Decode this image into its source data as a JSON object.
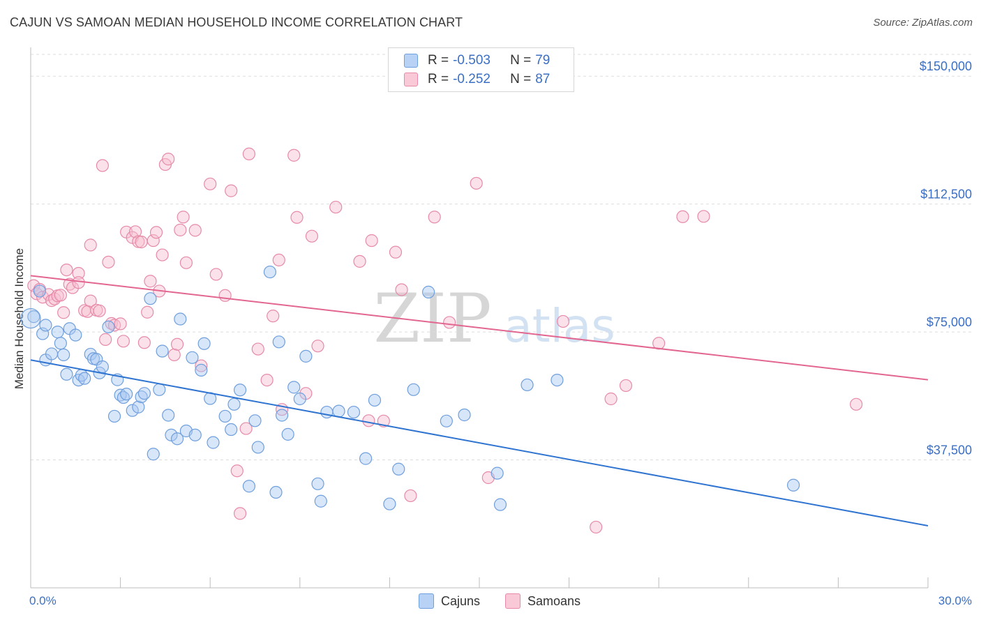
{
  "header": {
    "title": "CAJUN VS SAMOAN MEDIAN HOUSEHOLD INCOME CORRELATION CHART",
    "source": "Source: ZipAtlas.com"
  },
  "legend": {
    "cajuns": {
      "r_label": "R =",
      "r_value": "-0.503",
      "n_label": "N =",
      "n_value": "79"
    },
    "samoans": {
      "r_label": "R =",
      "r_value": "-0.252",
      "n_label": "N =",
      "n_value": "87"
    }
  },
  "bottom_legend": {
    "cajuns": "Cajuns",
    "samoans": "Samoans"
  },
  "axes": {
    "x_min_label": "0.0%",
    "x_max_label": "30.0%"
  },
  "colors": {
    "cajun_fill": "#a9c8f2",
    "cajun_stroke": "#6f9fdc",
    "cajun_line": "#2f74d0",
    "samoan_fill": "#f7bfd0",
    "samoan_stroke": "#e68aa8",
    "samoan_line": "#e2668f",
    "tick_label": "#3a6fc4",
    "grid": "#dddddd"
  },
  "watermark": {
    "zip": "ZIP",
    "atlas": "atlas"
  },
  "chart_data": {
    "type": "scatter",
    "title": "CAJUN VS SAMOAN MEDIAN HOUSEHOLD INCOME CORRELATION CHART",
    "xlabel": "",
    "ylabel": "Median Household Income",
    "xlim": [
      0,
      30
    ],
    "ylim": [
      0,
      157000
    ],
    "x_unit": "%",
    "y_ticks": [
      37500,
      75000,
      112500,
      150000
    ],
    "y_tick_labels": [
      "$37,500",
      "$75,000",
      "$112,500",
      "$150,000"
    ],
    "grid": "horizontal dashed",
    "legend_placement": "top-center",
    "series": [
      {
        "name": "Cajuns",
        "r": -0.503,
        "n": 79,
        "trend": {
          "x": [
            0,
            30
          ],
          "y": [
            66800,
            18200
          ]
        },
        "points": [
          [
            0.1,
            79500
          ],
          [
            0.3,
            87000
          ],
          [
            0.4,
            74500
          ],
          [
            0.5,
            66800
          ],
          [
            0.5,
            77000
          ],
          [
            0.7,
            68600
          ],
          [
            0.9,
            75000
          ],
          [
            1.0,
            71700
          ],
          [
            1.1,
            68300
          ],
          [
            1.2,
            62600
          ],
          [
            1.3,
            76000
          ],
          [
            1.5,
            74100
          ],
          [
            1.6,
            60900
          ],
          [
            1.7,
            62300
          ],
          [
            1.8,
            61400
          ],
          [
            2.0,
            68500
          ],
          [
            2.1,
            67200
          ],
          [
            2.2,
            67000
          ],
          [
            2.3,
            63000
          ],
          [
            2.4,
            64800
          ],
          [
            2.6,
            76500
          ],
          [
            2.8,
            50300
          ],
          [
            2.9,
            61000
          ],
          [
            3.0,
            56500
          ],
          [
            3.1,
            55800
          ],
          [
            3.2,
            56800
          ],
          [
            3.4,
            52000
          ],
          [
            3.6,
            53000
          ],
          [
            3.7,
            56000
          ],
          [
            3.8,
            57000
          ],
          [
            4.0,
            84800
          ],
          [
            4.1,
            39200
          ],
          [
            4.3,
            58100
          ],
          [
            4.4,
            69400
          ],
          [
            4.6,
            50600
          ],
          [
            4.7,
            44800
          ],
          [
            4.9,
            43700
          ],
          [
            5.0,
            78800
          ],
          [
            5.2,
            46000
          ],
          [
            5.4,
            67500
          ],
          [
            5.5,
            44800
          ],
          [
            5.7,
            63800
          ],
          [
            5.8,
            71600
          ],
          [
            6.0,
            55500
          ],
          [
            6.1,
            42600
          ],
          [
            6.5,
            50300
          ],
          [
            6.7,
            46400
          ],
          [
            6.8,
            53800
          ],
          [
            7.0,
            58000
          ],
          [
            7.3,
            29800
          ],
          [
            7.5,
            49000
          ],
          [
            7.6,
            41200
          ],
          [
            8.0,
            92600
          ],
          [
            8.2,
            28000
          ],
          [
            8.3,
            72100
          ],
          [
            8.4,
            50600
          ],
          [
            8.6,
            45000
          ],
          [
            8.8,
            58800
          ],
          [
            9.0,
            55400
          ],
          [
            9.2,
            67900
          ],
          [
            9.6,
            30500
          ],
          [
            9.7,
            25400
          ],
          [
            9.9,
            51500
          ],
          [
            10.3,
            51800
          ],
          [
            10.8,
            51500
          ],
          [
            11.2,
            37900
          ],
          [
            11.5,
            55000
          ],
          [
            12.0,
            24600
          ],
          [
            12.3,
            34800
          ],
          [
            12.8,
            58100
          ],
          [
            13.3,
            86700
          ],
          [
            13.9,
            48900
          ],
          [
            14.5,
            50700
          ],
          [
            15.6,
            33600
          ],
          [
            15.7,
            24400
          ],
          [
            16.6,
            59500
          ],
          [
            17.6,
            60900
          ],
          [
            25.5,
            30100
          ],
          [
            0.0,
            79000
          ]
        ]
      },
      {
        "name": "Samoans",
        "r": -0.252,
        "n": 87,
        "trend": {
          "x": [
            0,
            30
          ],
          "y": [
            91500,
            61000
          ]
        },
        "points": [
          [
            0.1,
            88600
          ],
          [
            0.2,
            86200
          ],
          [
            0.3,
            87500
          ],
          [
            0.4,
            85200
          ],
          [
            0.6,
            86000
          ],
          [
            0.7,
            84200
          ],
          [
            0.8,
            84700
          ],
          [
            0.9,
            85600
          ],
          [
            1.0,
            85800
          ],
          [
            1.1,
            80700
          ],
          [
            1.2,
            93200
          ],
          [
            1.3,
            89000
          ],
          [
            1.4,
            88000
          ],
          [
            1.6,
            92200
          ],
          [
            1.6,
            89500
          ],
          [
            1.8,
            81300
          ],
          [
            1.9,
            81000
          ],
          [
            2.0,
            84100
          ],
          [
            2.0,
            100500
          ],
          [
            2.2,
            81400
          ],
          [
            2.3,
            81200
          ],
          [
            2.4,
            123800
          ],
          [
            2.5,
            72800
          ],
          [
            2.6,
            95500
          ],
          [
            2.7,
            77500
          ],
          [
            2.8,
            77000
          ],
          [
            3.0,
            77400
          ],
          [
            3.1,
            72300
          ],
          [
            3.2,
            104300
          ],
          [
            3.4,
            102700
          ],
          [
            3.5,
            104400
          ],
          [
            3.6,
            101500
          ],
          [
            3.7,
            101400
          ],
          [
            3.8,
            71900
          ],
          [
            3.9,
            80800
          ],
          [
            4.0,
            89900
          ],
          [
            4.1,
            101800
          ],
          [
            4.2,
            104200
          ],
          [
            4.3,
            87000
          ],
          [
            4.4,
            97600
          ],
          [
            4.5,
            124100
          ],
          [
            4.6,
            125700
          ],
          [
            4.8,
            68300
          ],
          [
            4.9,
            71400
          ],
          [
            5.0,
            104900
          ],
          [
            5.1,
            108700
          ],
          [
            5.2,
            95300
          ],
          [
            5.5,
            104800
          ],
          [
            5.7,
            65100
          ],
          [
            6.0,
            118400
          ],
          [
            6.2,
            91900
          ],
          [
            6.5,
            85700
          ],
          [
            6.7,
            116400
          ],
          [
            6.9,
            34300
          ],
          [
            7.0,
            21800
          ],
          [
            7.2,
            46700
          ],
          [
            7.3,
            127200
          ],
          [
            7.6,
            70000
          ],
          [
            7.9,
            60900
          ],
          [
            8.1,
            79700
          ],
          [
            8.3,
            96100
          ],
          [
            8.4,
            52300
          ],
          [
            8.8,
            126800
          ],
          [
            8.9,
            108600
          ],
          [
            9.2,
            57000
          ],
          [
            9.4,
            103100
          ],
          [
            9.6,
            70900
          ],
          [
            10.2,
            111600
          ],
          [
            11.0,
            95700
          ],
          [
            11.3,
            49000
          ],
          [
            11.4,
            101800
          ],
          [
            11.8,
            48900
          ],
          [
            12.2,
            98400
          ],
          [
            12.4,
            87400
          ],
          [
            12.7,
            27000
          ],
          [
            13.5,
            108700
          ],
          [
            14.0,
            77800
          ],
          [
            14.9,
            118600
          ],
          [
            15.3,
            32300
          ],
          [
            17.8,
            78100
          ],
          [
            18.9,
            17800
          ],
          [
            19.4,
            55400
          ],
          [
            19.9,
            59300
          ],
          [
            21.0,
            71700
          ],
          [
            21.8,
            108800
          ],
          [
            22.5,
            108900
          ],
          [
            27.6,
            53800
          ]
        ]
      }
    ]
  }
}
